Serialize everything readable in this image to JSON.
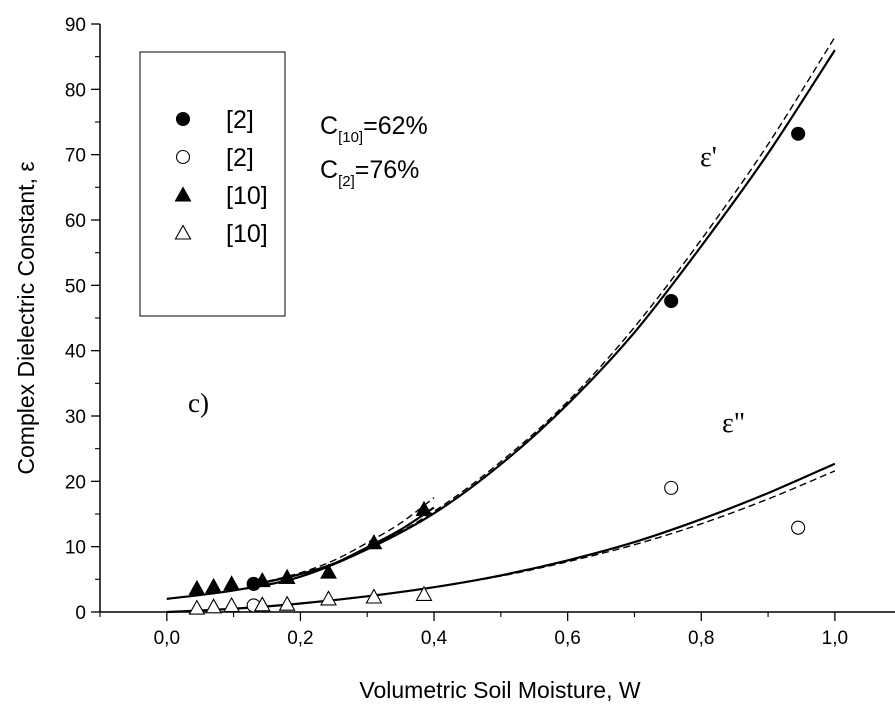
{
  "chart_data": {
    "type": "scatter",
    "title": "",
    "xlabel": "Volumetric Soil Moisture, W",
    "ylabel": "Complex Dielectric Constant, ε",
    "xlim": [
      -0.1,
      1.09
    ],
    "ylim": [
      0,
      90
    ],
    "x_ticks": [
      0.0,
      0.2,
      0.4,
      0.6,
      0.8,
      1.0
    ],
    "x_tick_labels": [
      "0,0",
      "0,2",
      "0,4",
      "0,6",
      "0,8",
      "1,0"
    ],
    "y_ticks": [
      0,
      10,
      20,
      30,
      40,
      50,
      60,
      70,
      80,
      90
    ],
    "y_tick_labels": [
      "0",
      "10",
      "20",
      "30",
      "40",
      "50",
      "60",
      "70",
      "80",
      "90"
    ],
    "grid": false,
    "legend_position": "top-left",
    "series": [
      {
        "name": "[2]",
        "marker": "filled-circle",
        "points": [
          [
            0.13,
            4.3
          ],
          [
            0.755,
            47.6
          ],
          [
            0.945,
            73.2
          ]
        ]
      },
      {
        "name": "[2]",
        "marker": "open-circle",
        "points": [
          [
            0.13,
            1.0
          ],
          [
            0.755,
            19.0
          ],
          [
            0.945,
            12.9
          ]
        ]
      },
      {
        "name": "[10]",
        "marker": "filled-triangle",
        "points": [
          [
            0.045,
            3.6
          ],
          [
            0.07,
            3.9
          ],
          [
            0.097,
            4.3
          ],
          [
            0.143,
            4.8
          ],
          [
            0.18,
            5.3
          ],
          [
            0.242,
            6.1
          ],
          [
            0.31,
            10.6
          ],
          [
            0.385,
            15.7
          ]
        ]
      },
      {
        "name": "[10]",
        "marker": "open-triangle",
        "points": [
          [
            0.045,
            0.6
          ],
          [
            0.07,
            0.8
          ],
          [
            0.097,
            1.0
          ],
          [
            0.143,
            1.1
          ],
          [
            0.18,
            1.2
          ],
          [
            0.242,
            2.0
          ],
          [
            0.31,
            2.3
          ],
          [
            0.385,
            2.7
          ]
        ]
      }
    ],
    "curves": [
      {
        "style": "solid",
        "points": [
          [
            0.0,
            2.0
          ],
          [
            0.1,
            3.3
          ],
          [
            0.2,
            5.4
          ],
          [
            0.3,
            9.6
          ],
          [
            0.4,
            15.1
          ],
          [
            0.5,
            22.6
          ],
          [
            0.6,
            31.8
          ],
          [
            0.7,
            42.8
          ],
          [
            0.8,
            56.0
          ],
          [
            0.9,
            70.2
          ],
          [
            1.0,
            86.0
          ]
        ]
      },
      {
        "style": "dashed",
        "points": [
          [
            0.0,
            2.0
          ],
          [
            0.1,
            3.3
          ],
          [
            0.2,
            5.4
          ],
          [
            0.3,
            9.6
          ],
          [
            0.4,
            15.4
          ],
          [
            0.5,
            23.0
          ],
          [
            0.6,
            32.2
          ],
          [
            0.7,
            43.6
          ],
          [
            0.8,
            57.0
          ],
          [
            0.9,
            71.6
          ],
          [
            1.0,
            88.0
          ]
        ]
      },
      {
        "style": "solid",
        "points": [
          [
            0.15,
            4.6
          ],
          [
            0.2,
            5.8
          ],
          [
            0.25,
            7.4
          ],
          [
            0.3,
            9.9
          ],
          [
            0.35,
            12.6
          ],
          [
            0.4,
            16.0
          ]
        ]
      },
      {
        "style": "dashed",
        "points": [
          [
            0.15,
            4.7
          ],
          [
            0.2,
            6.0
          ],
          [
            0.25,
            7.9
          ],
          [
            0.3,
            10.6
          ],
          [
            0.35,
            13.6
          ],
          [
            0.4,
            17.5
          ]
        ]
      },
      {
        "style": "solid",
        "points": [
          [
            0.0,
            0.0
          ],
          [
            0.1,
            0.5
          ],
          [
            0.2,
            1.3
          ],
          [
            0.3,
            2.4
          ],
          [
            0.4,
            3.8
          ],
          [
            0.5,
            5.6
          ],
          [
            0.6,
            7.9
          ],
          [
            0.7,
            10.7
          ],
          [
            0.8,
            14.2
          ],
          [
            0.9,
            18.2
          ],
          [
            1.0,
            22.7
          ]
        ]
      },
      {
        "style": "dashed",
        "points": [
          [
            0.0,
            0.0
          ],
          [
            0.1,
            0.5
          ],
          [
            0.2,
            1.3
          ],
          [
            0.3,
            2.4
          ],
          [
            0.4,
            3.8
          ],
          [
            0.5,
            5.5
          ],
          [
            0.6,
            7.7
          ],
          [
            0.7,
            10.3
          ],
          [
            0.8,
            13.5
          ],
          [
            0.9,
            17.3
          ],
          [
            1.0,
            21.6
          ]
        ]
      }
    ],
    "annotations": {
      "c10_main": "C",
      "c10_sub": "[10]",
      "c10_value": "=62%",
      "c2_main": "C",
      "c2_sub": "[2]",
      "c2_value": "=76%",
      "eps_real": "ε'",
      "eps_imag": "ε\"",
      "panel": "c)"
    }
  }
}
